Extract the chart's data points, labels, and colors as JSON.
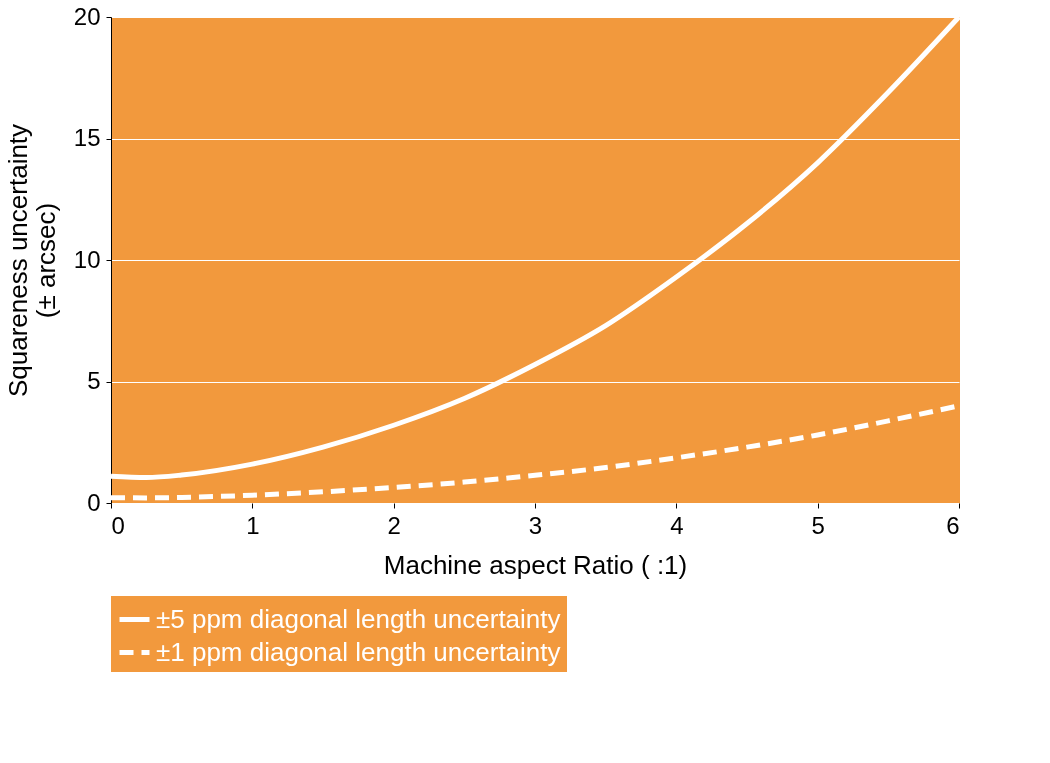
{
  "chart_data": {
    "type": "line",
    "xlabel": "Machine aspect Ratio (  :1)",
    "ylabel": "Squareness uncertainty\n(± arcsec)",
    "x": [
      0,
      0.25,
      0.5,
      1,
      1.5,
      2,
      2.5,
      3,
      3.5,
      4,
      4.5,
      5,
      5.5,
      6
    ],
    "series": [
      {
        "name": "±5 ppm diagonal length uncertainty",
        "color": "#ffffff",
        "line_style": "solid",
        "values": [
          1.1,
          1.05,
          1.15,
          1.6,
          2.3,
          3.2,
          4.3,
          5.7,
          7.3,
          9.3,
          11.5,
          14.0,
          16.9,
          20.0
        ]
      },
      {
        "name": "±1 ppm diagonal length uncertainty",
        "color": "#ffffff",
        "line_style": "dashed",
        "values": [
          0.22,
          0.21,
          0.23,
          0.32,
          0.46,
          0.64,
          0.86,
          1.14,
          1.46,
          1.86,
          2.3,
          2.8,
          3.38,
          4.0
        ]
      }
    ],
    "xlim": [
      0,
      6
    ],
    "xticks": [
      0,
      1,
      2,
      3,
      4,
      5,
      6
    ],
    "ylim": [
      0,
      20
    ],
    "yticks": [
      0,
      5,
      10,
      15,
      20
    ],
    "grid": "y",
    "legend": "bottom",
    "marker": "none"
  }
}
